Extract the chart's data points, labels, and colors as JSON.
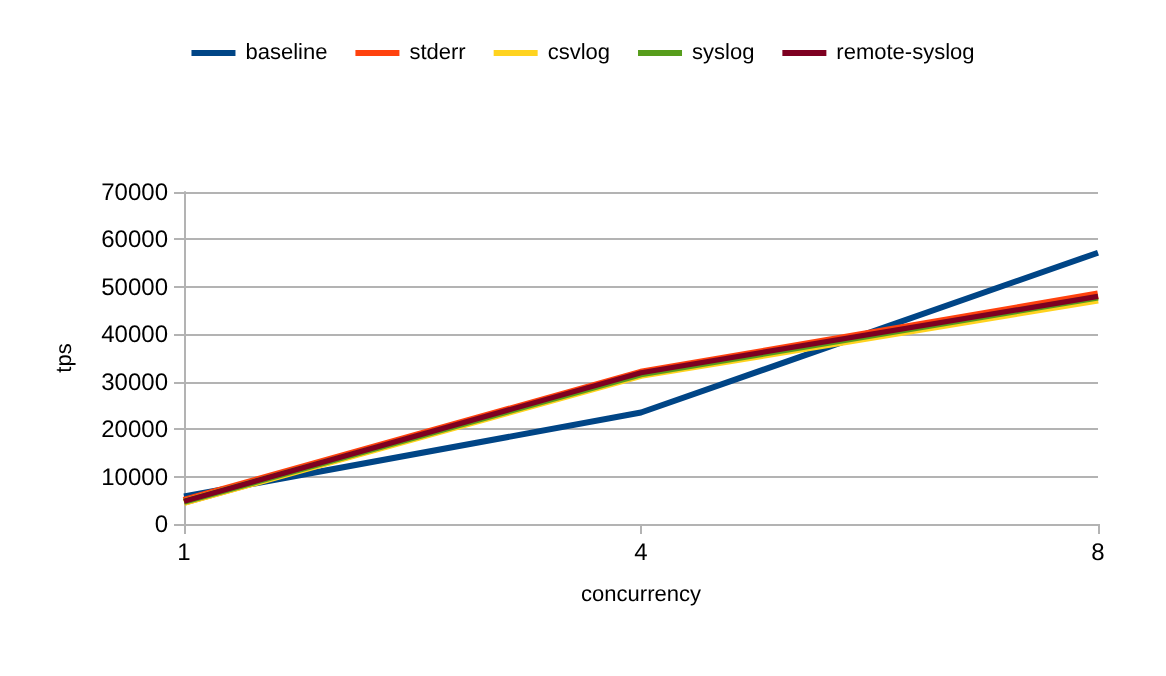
{
  "chart_data": {
    "type": "line",
    "xlabel": "concurrency",
    "ylabel": "tps",
    "categories": [
      "1",
      "4",
      "8"
    ],
    "series": [
      {
        "name": "baseline",
        "color": "#004586",
        "values": [
          5800,
          23500,
          57200
        ]
      },
      {
        "name": "stderr",
        "color": "#ff420e",
        "values": [
          4800,
          31800,
          48300
        ]
      },
      {
        "name": "csvlog",
        "color": "#ffd320",
        "values": [
          4600,
          31400,
          47300
        ]
      },
      {
        "name": "syslog",
        "color": "#579d1c",
        "values": [
          4700,
          31600,
          47800
        ]
      },
      {
        "name": "remote-syslog",
        "color": "#7e0021",
        "values": [
          4800,
          31900,
          48000
        ]
      }
    ],
    "ylim": [
      0,
      70000
    ],
    "yticks": [
      0,
      10000,
      20000,
      30000,
      40000,
      50000,
      60000,
      70000
    ],
    "grid": "y",
    "legend": "top",
    "marker": "none",
    "line_style": "solid"
  }
}
